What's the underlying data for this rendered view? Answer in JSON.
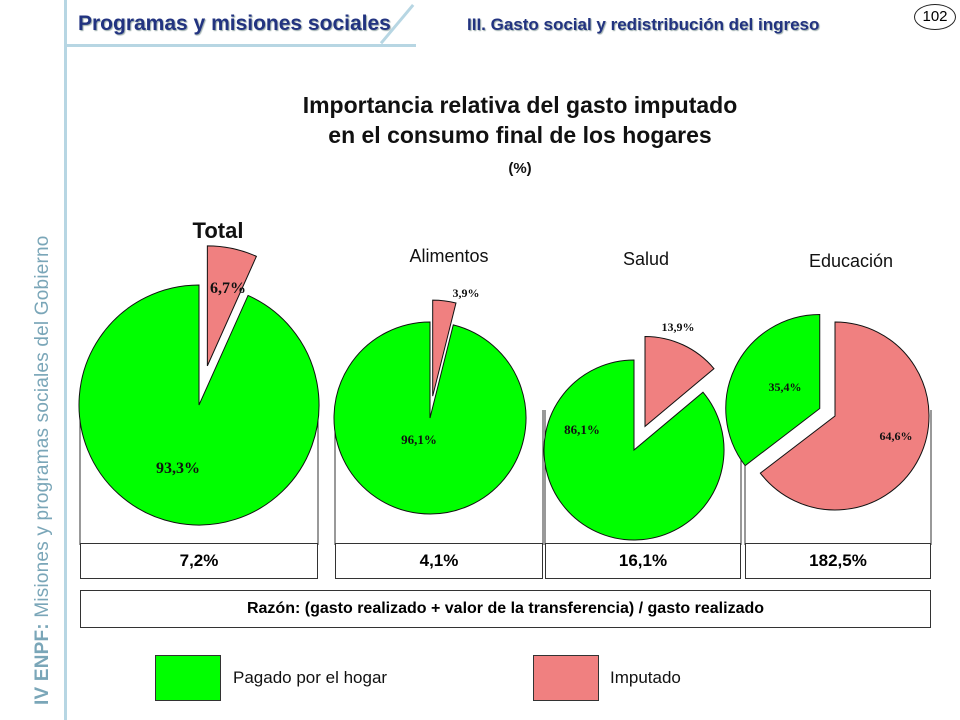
{
  "header": {
    "section": "Programas y misiones sociales",
    "subsection": "III. Gasto social y redistribución del ingreso",
    "page_number": "102"
  },
  "sidebar_text": {
    "acronym": "IV ENPF:",
    "rest": "Misiones y programas sociales del Gobierno"
  },
  "title_line1": "Importancia relativa del gasto imputado",
  "title_line2": "en el consumo final de los hogares",
  "unit": "(%)",
  "colors": {
    "paid": "#00ff00",
    "imputed": "#f08080",
    "accent": "#b7d6e3",
    "header": "#223380"
  },
  "chart_data": {
    "type": "pie",
    "title": "Importancia relativa del gasto imputado en el consumo final de los hogares",
    "unit": "(%)",
    "legend": [
      "Pagado por el hogar",
      "Imputado"
    ],
    "legend_placement": "bottom",
    "pies": [
      {
        "name": "Total",
        "slices": [
          {
            "label": "Pagado por el hogar",
            "value": 93.3,
            "text": "93,3%"
          },
          {
            "label": "Imputado",
            "value": 6.7,
            "text": "6,7%"
          }
        ],
        "ratio": "7,2%"
      },
      {
        "name": "Alimentos",
        "slices": [
          {
            "label": "Pagado por el hogar",
            "value": 96.1,
            "text": "96,1%"
          },
          {
            "label": "Imputado",
            "value": 3.9,
            "text": "3,9%"
          }
        ],
        "ratio": "4,1%"
      },
      {
        "name": "Salud",
        "slices": [
          {
            "label": "Pagado por el hogar",
            "value": 86.1,
            "text": "86,1%"
          },
          {
            "label": "Imputado",
            "value": 13.9,
            "text": "13,9%"
          }
        ],
        "ratio": "16,1%"
      },
      {
        "name": "Educación",
        "slices": [
          {
            "label": "Pagado por el hogar",
            "value": 35.4,
            "text": "35,4%"
          },
          {
            "label": "Imputado",
            "value": 64.6,
            "text": "64,6%"
          }
        ],
        "ratio": "182,5%"
      }
    ],
    "ratio_note": "Razón: (gasto realizado + valor de la transferencia) / gasto realizado"
  }
}
